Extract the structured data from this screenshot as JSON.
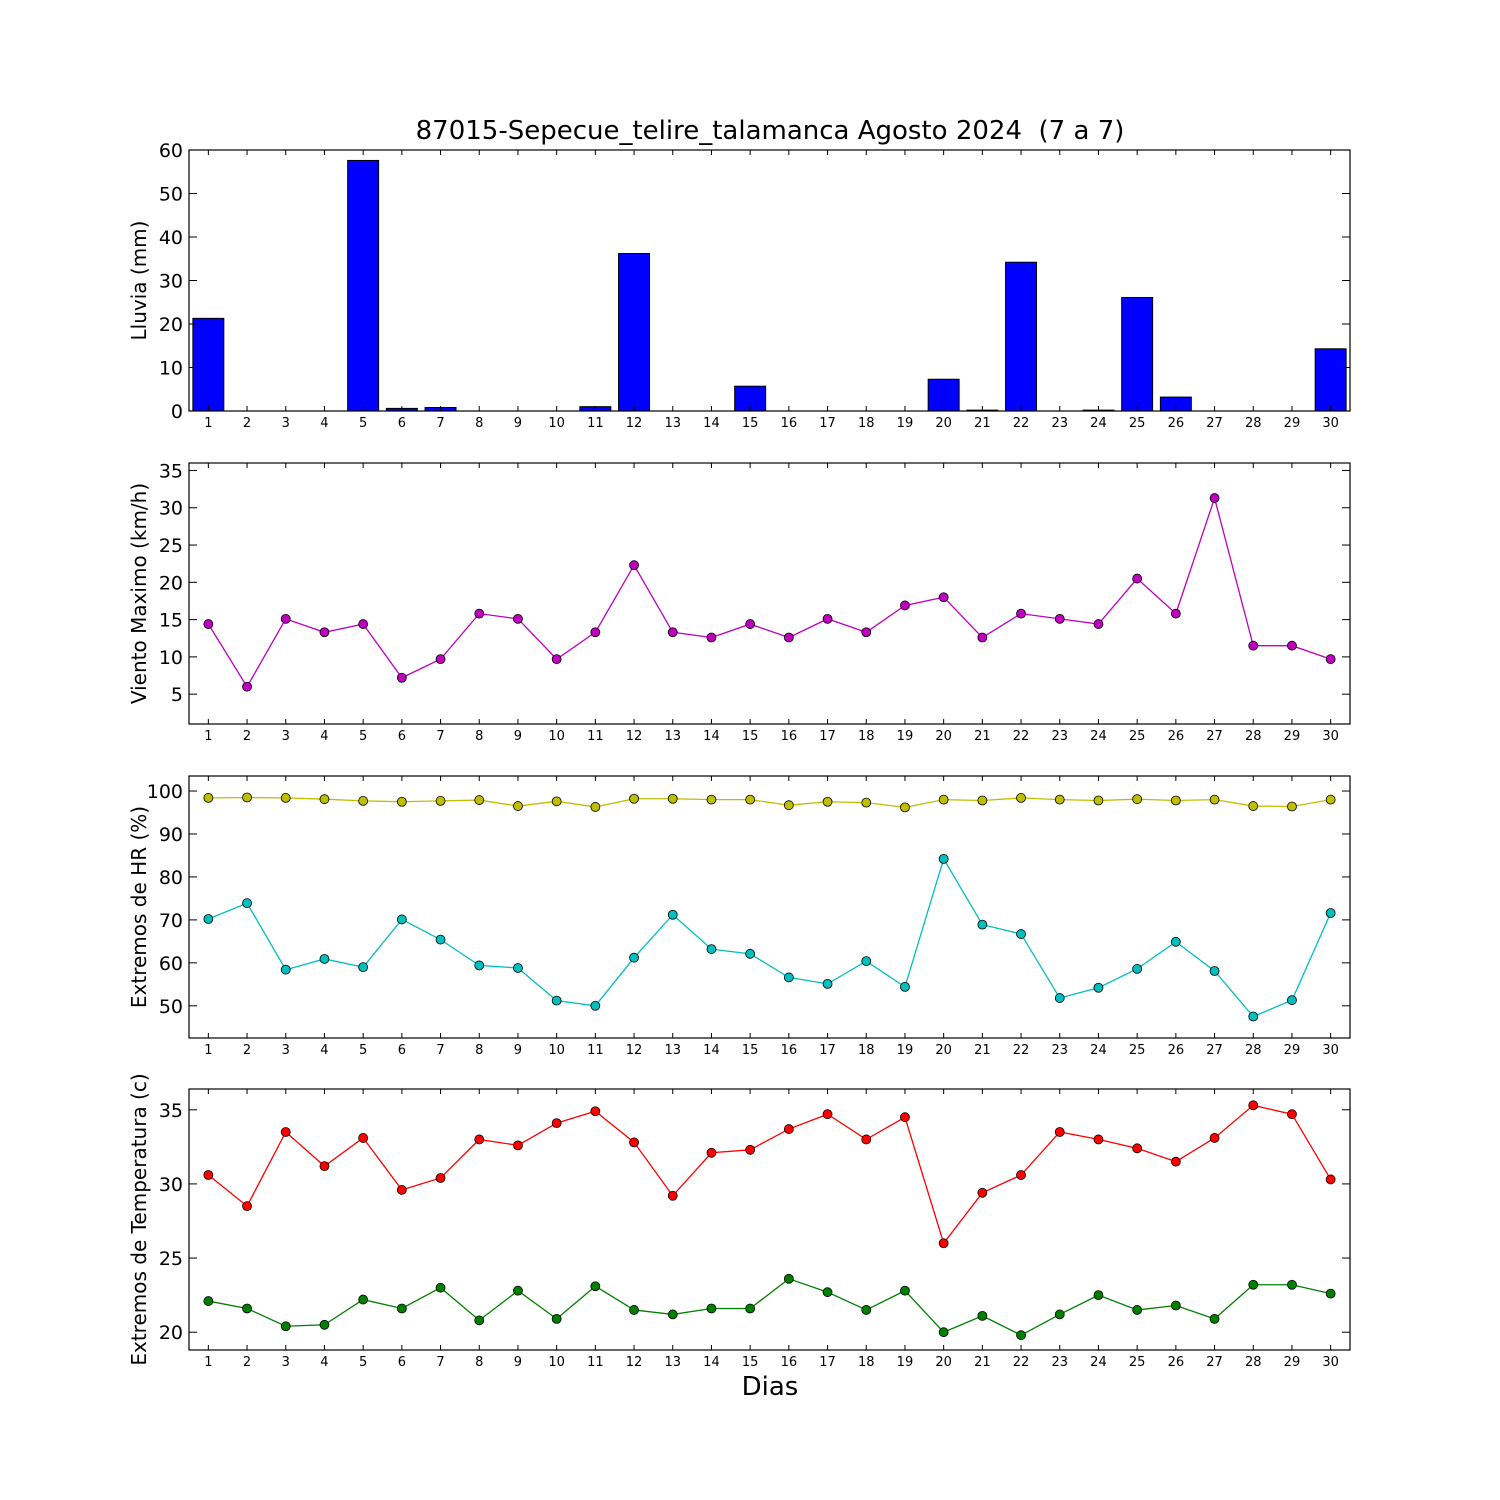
{
  "title": "87015-Sepecue_telire_talamanca Agosto 2024  (7 a 7)",
  "xlabel": "Dias",
  "chart_data": [
    {
      "type": "bar",
      "ylabel": "Lluvia (mm)",
      "x": [
        1,
        2,
        3,
        4,
        5,
        6,
        7,
        8,
        9,
        10,
        11,
        12,
        13,
        14,
        15,
        16,
        17,
        18,
        19,
        20,
        21,
        22,
        23,
        24,
        25,
        26,
        27,
        28,
        29,
        30
      ],
      "ylim": [
        0,
        60
      ],
      "yticks": [
        0,
        10,
        20,
        30,
        40,
        50,
        60
      ],
      "series": [
        {
          "color": "#0000ff",
          "values": [
            21.3,
            0,
            0,
            0,
            57.6,
            0.6,
            0.8,
            0,
            0,
            0,
            1.0,
            36.2,
            0,
            0,
            5.7,
            0,
            0,
            0,
            0,
            7.3,
            0.2,
            34.2,
            0,
            0.2,
            26.1,
            3.2,
            0,
            0,
            0,
            14.3
          ]
        }
      ]
    },
    {
      "type": "line",
      "ylabel": "Viento Maximo (km/h)",
      "x": [
        1,
        2,
        3,
        4,
        5,
        6,
        7,
        8,
        9,
        10,
        11,
        12,
        13,
        14,
        15,
        16,
        17,
        18,
        19,
        20,
        21,
        22,
        23,
        24,
        25,
        26,
        27,
        28,
        29,
        30
      ],
      "ylim": [
        1,
        36
      ],
      "yticks": [
        5,
        10,
        15,
        20,
        25,
        30,
        35
      ],
      "series": [
        {
          "color": "#bf00bf",
          "values": [
            14.4,
            6.0,
            15.1,
            13.3,
            14.4,
            7.2,
            9.7,
            15.8,
            15.1,
            9.7,
            13.3,
            22.3,
            13.3,
            12.6,
            14.4,
            12.6,
            15.1,
            13.3,
            16.9,
            18.0,
            12.6,
            15.8,
            15.1,
            14.4,
            20.5,
            15.8,
            31.3,
            11.5,
            11.5,
            9.7
          ]
        }
      ]
    },
    {
      "type": "line",
      "ylabel": "Extremos de HR (%)",
      "x": [
        1,
        2,
        3,
        4,
        5,
        6,
        7,
        8,
        9,
        10,
        11,
        12,
        13,
        14,
        15,
        16,
        17,
        18,
        19,
        20,
        21,
        22,
        23,
        24,
        25,
        26,
        27,
        28,
        29,
        30
      ],
      "ylim": [
        42.5,
        103.5
      ],
      "yticks": [
        50,
        60,
        70,
        80,
        90,
        100
      ],
      "series": [
        {
          "color": "#bfbf00",
          "values": [
            98.4,
            98.5,
            98.4,
            98.1,
            97.7,
            97.5,
            97.7,
            97.9,
            96.5,
            97.6,
            96.3,
            98.2,
            98.2,
            98.0,
            98.0,
            96.7,
            97.5,
            97.3,
            96.2,
            98.0,
            97.8,
            98.4,
            98.0,
            97.8,
            98.1,
            97.8,
            98.0,
            96.5,
            96.4,
            98.0
          ]
        },
        {
          "color": "#00bfbf",
          "values": [
            70.2,
            73.9,
            58.4,
            60.9,
            59.0,
            70.1,
            65.4,
            59.4,
            58.8,
            51.2,
            50.0,
            61.2,
            71.2,
            63.2,
            62.1,
            56.6,
            55.1,
            60.4,
            54.4,
            84.2,
            68.9,
            66.7,
            51.8,
            54.2,
            58.6,
            64.9,
            58.1,
            47.5,
            51.3,
            71.6
          ]
        }
      ]
    },
    {
      "type": "line",
      "ylabel": "Extremos de Temperatura (c)",
      "x": [
        1,
        2,
        3,
        4,
        5,
        6,
        7,
        8,
        9,
        10,
        11,
        12,
        13,
        14,
        15,
        16,
        17,
        18,
        19,
        20,
        21,
        22,
        23,
        24,
        25,
        26,
        27,
        28,
        29,
        30
      ],
      "ylim": [
        18.8,
        36.4
      ],
      "yticks": [
        20,
        25,
        30,
        35
      ],
      "series": [
        {
          "color": "#ff0000",
          "values": [
            30.6,
            28.5,
            33.5,
            31.2,
            33.1,
            29.6,
            30.4,
            33.0,
            32.6,
            34.1,
            34.9,
            32.8,
            29.2,
            32.1,
            32.3,
            33.7,
            34.7,
            33.0,
            34.5,
            26.0,
            29.4,
            30.6,
            33.5,
            33.0,
            32.4,
            31.5,
            33.1,
            35.3,
            34.7,
            30.3
          ]
        },
        {
          "color": "#008000",
          "values": [
            22.1,
            21.6,
            20.4,
            20.5,
            22.2,
            21.6,
            23.0,
            20.8,
            22.8,
            20.9,
            23.1,
            21.5,
            21.2,
            21.6,
            21.6,
            23.6,
            22.7,
            21.5,
            22.8,
            20.0,
            21.1,
            19.8,
            21.2,
            22.5,
            21.5,
            21.8,
            20.9,
            23.2,
            23.2,
            22.6
          ]
        }
      ]
    }
  ]
}
